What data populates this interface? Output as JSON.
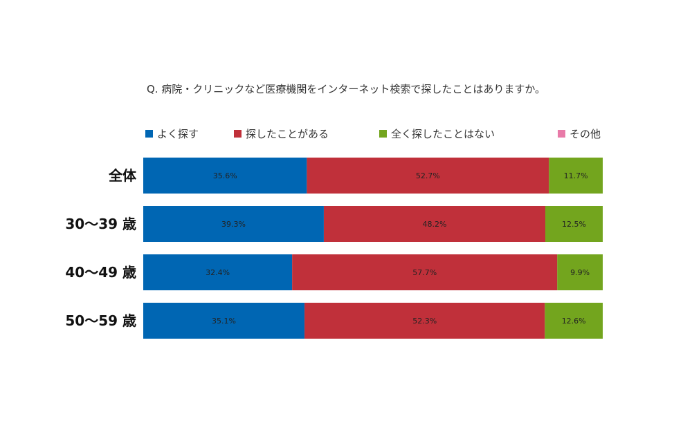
{
  "chart_data": {
    "type": "bar",
    "orientation": "horizontal",
    "stacked": true,
    "title": "Q. 病院・クリニックなど医療機関をインターネット検索で探したことはありますか。",
    "categories": [
      "全体",
      "30～39 歳",
      "40～49 歳",
      "50～59 歳"
    ],
    "series": [
      {
        "name": "よく探す",
        "color": "#0066b3",
        "values": [
          35.6,
          39.3,
          32.4,
          35.1
        ],
        "labels": [
          "35.6%",
          "39.3%",
          "32.4%",
          "35.1%"
        ]
      },
      {
        "name": "探したことがある",
        "color": "#c0303a",
        "values": [
          52.7,
          48.2,
          57.7,
          52.3
        ],
        "labels": [
          "52.7%",
          "48.2%",
          "57.7%",
          "52.3%"
        ]
      },
      {
        "name": "全く探したことはない",
        "color": "#73a51e",
        "values": [
          11.7,
          12.5,
          9.9,
          12.6
        ],
        "labels": [
          "11.7%",
          "12.5%",
          "9.9%",
          "12.6%"
        ]
      },
      {
        "name": "その他",
        "color": "#e87aa8",
        "values": [
          0,
          0,
          0,
          0
        ],
        "labels": [
          "",
          "",
          "",
          ""
        ]
      }
    ],
    "xlim": [
      0,
      100
    ],
    "grid": false,
    "legend": "top"
  }
}
